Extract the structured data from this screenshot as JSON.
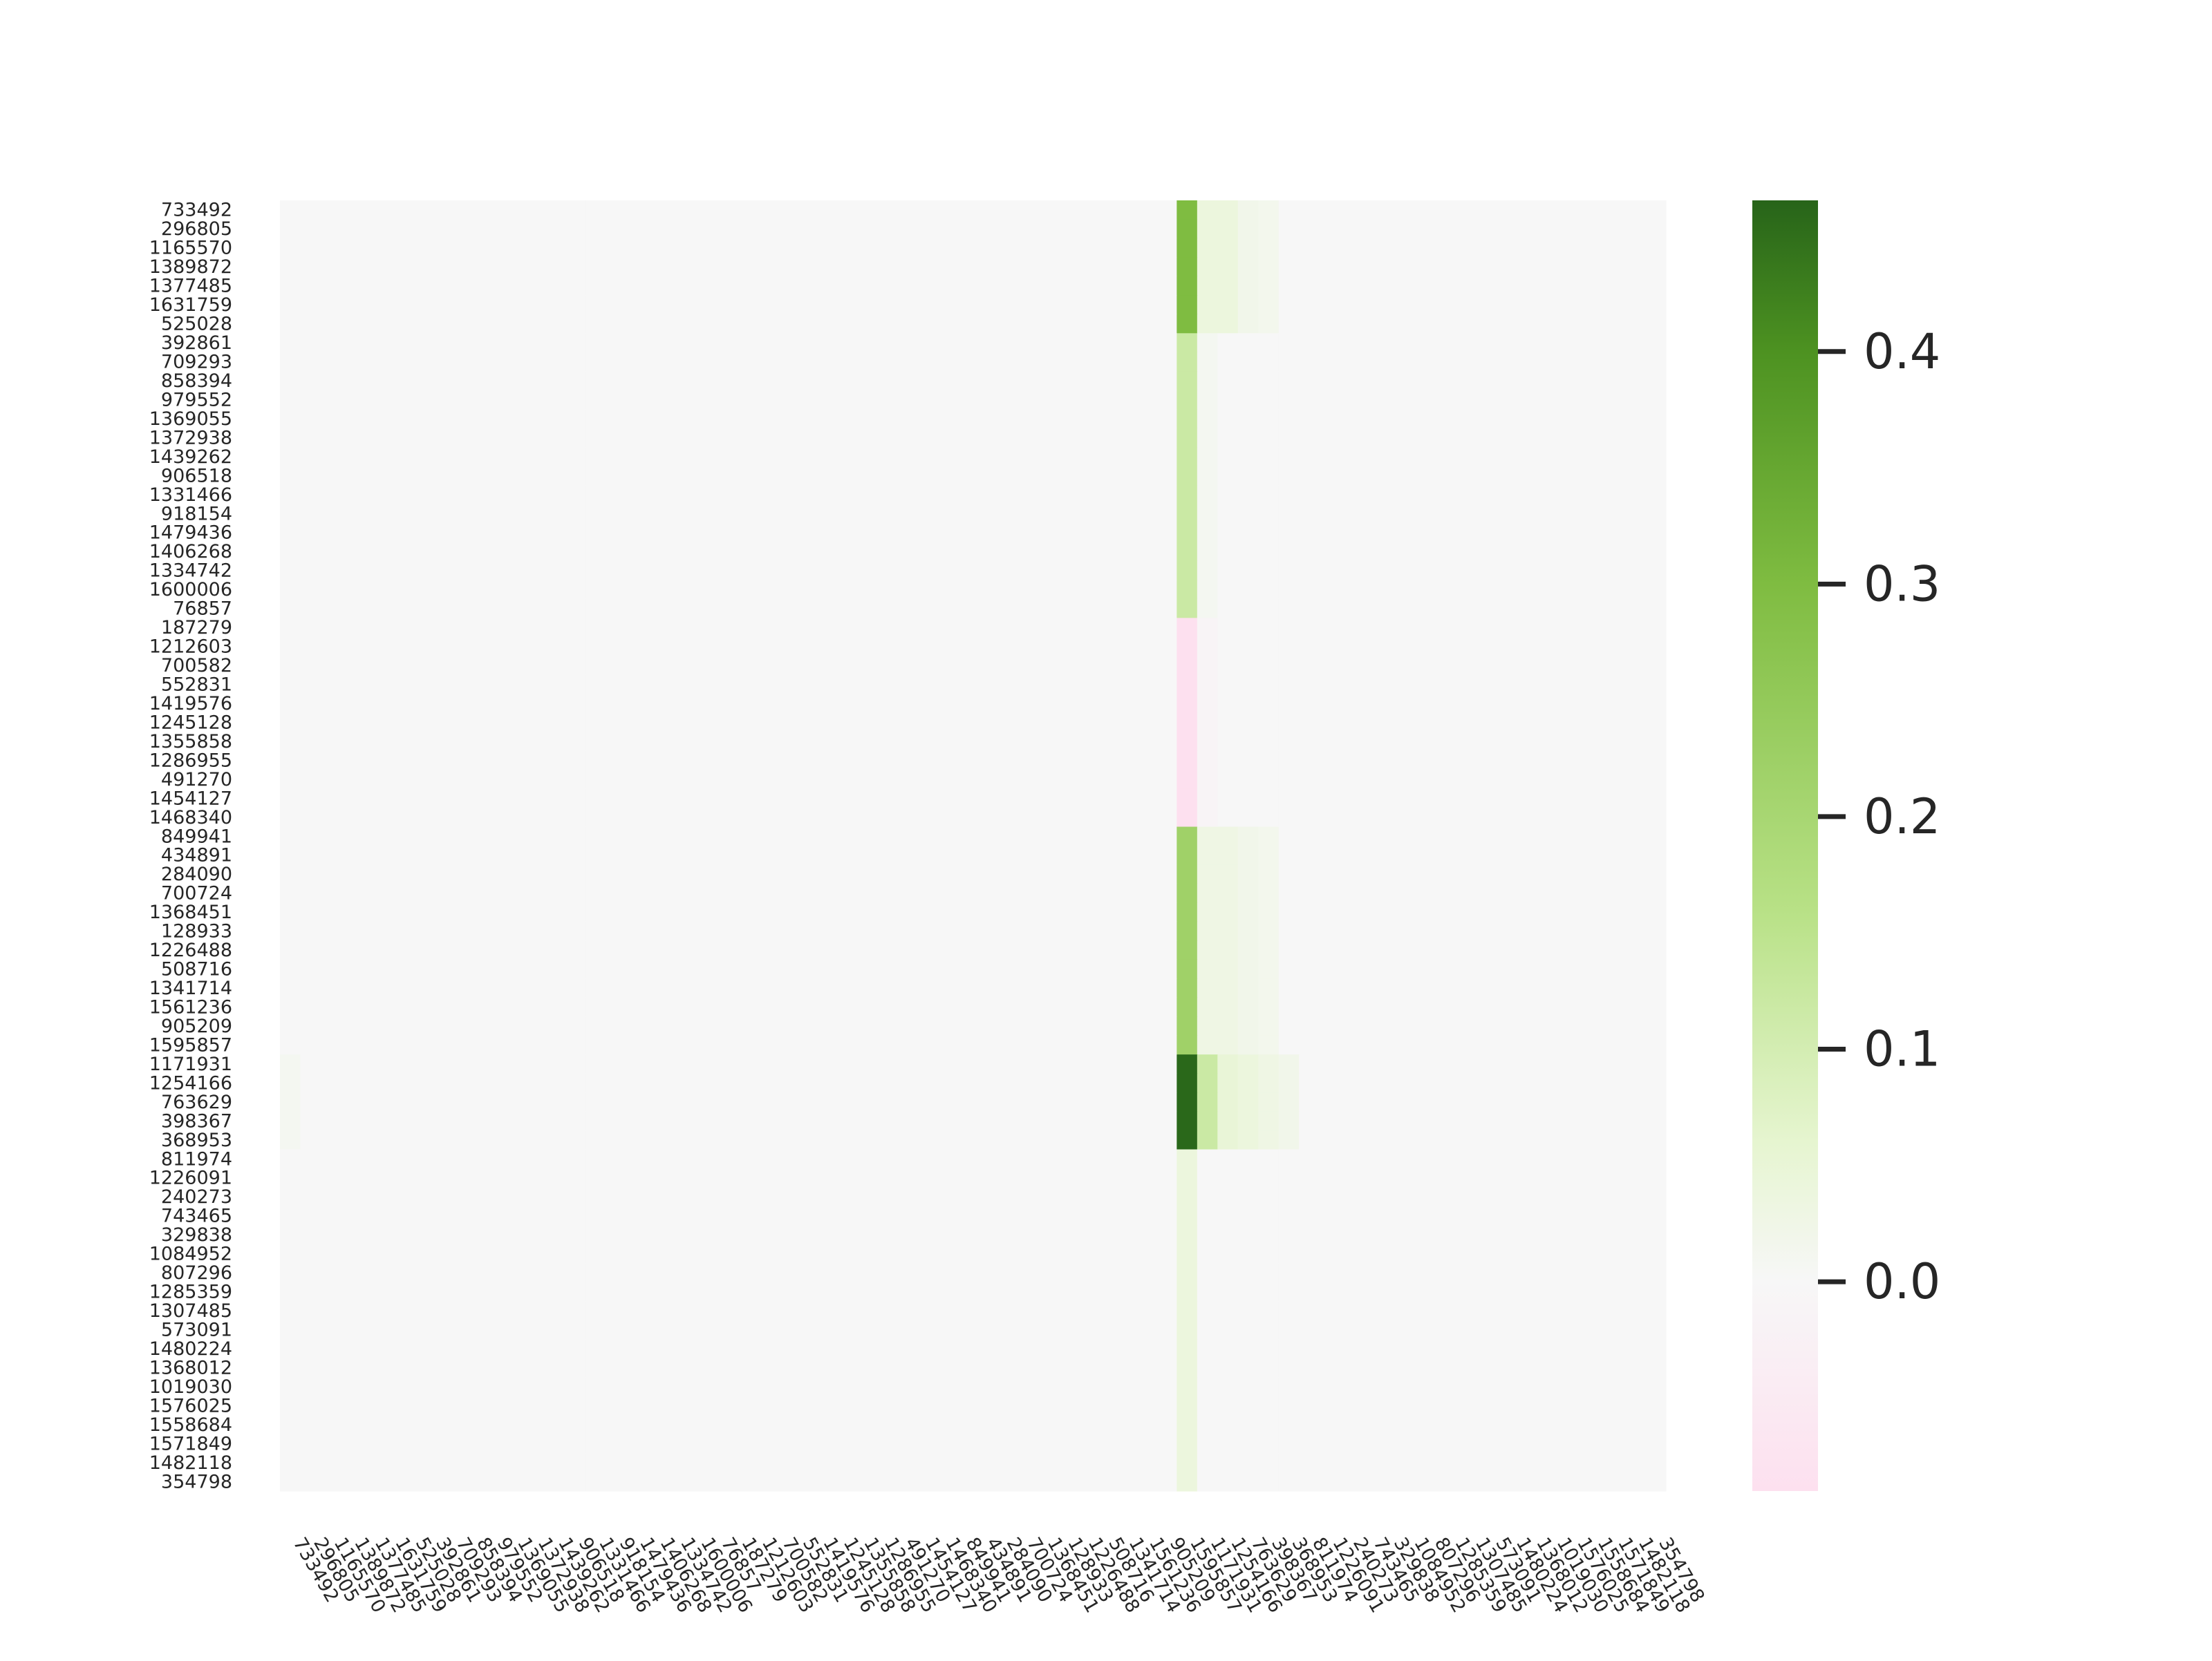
{
  "chart_data": {
    "type": "heatmap",
    "title": "",
    "xlabel": "",
    "ylabel": "",
    "row_labels": [
      "733492",
      "296805",
      "1165570",
      "1389872",
      "1377485",
      "1631759",
      "525028",
      "392861",
      "709293",
      "858394",
      "979552",
      "1369055",
      "1372938",
      "1439262",
      "906518",
      "1331466",
      "918154",
      "1479436",
      "1406268",
      "1334742",
      "1600006",
      "76857",
      "187279",
      "1212603",
      "700582",
      "552831",
      "1419576",
      "1245128",
      "1355858",
      "1286955",
      "491270",
      "1454127",
      "1468340",
      "849941",
      "434891",
      "284090",
      "700724",
      "1368451",
      "128933",
      "1226488",
      "508716",
      "1341714",
      "1561236",
      "905209",
      "1595857",
      "1171931",
      "1254166",
      "763629",
      "398367",
      "368953",
      "811974",
      "1226091",
      "240273",
      "743465",
      "329838",
      "1084952",
      "807296",
      "1285359",
      "1307485",
      "573091",
      "1480224",
      "1368012",
      "1019030",
      "1576025",
      "1558684",
      "1571849",
      "1482118",
      "354798"
    ],
    "col_labels": [
      "733492",
      "296805",
      "1165570",
      "1389872",
      "1377485",
      "1631759",
      "525028",
      "392861",
      "709293",
      "858394",
      "979552",
      "1369055",
      "1372938",
      "1439262",
      "906518",
      "1331466",
      "918154",
      "1479436",
      "1406268",
      "1334742",
      "1600006",
      "76857",
      "187279",
      "1212603",
      "700582",
      "552831",
      "1419576",
      "1245128",
      "1355858",
      "1286955",
      "491270",
      "1454127",
      "1468340",
      "849941",
      "434891",
      "284090",
      "700724",
      "1368451",
      "128933",
      "1226488",
      "508716",
      "1341714",
      "1561236",
      "905209",
      "1595857",
      "1171931",
      "1254166",
      "763629",
      "398367",
      "368953",
      "811974",
      "1226091",
      "240273",
      "743465",
      "329838",
      "1084952",
      "807296",
      "1285359",
      "1307485",
      "573091",
      "1480224",
      "1368012",
      "1019030",
      "1576025",
      "1558684",
      "1571849",
      "1482118",
      "354798"
    ],
    "groups": [
      {
        "rows": [
          0,
          6
        ],
        "values": {
          "44": 0.3,
          "45": 0.04,
          "46": 0.04,
          "47": 0.02,
          "48": 0.015
        }
      },
      {
        "rows": [
          7,
          21
        ],
        "values": {
          "44": 0.12,
          "45": 0.01
        }
      },
      {
        "rows": [
          22,
          32
        ],
        "values": {
          "44": -0.09,
          "45": -0.01
        }
      },
      {
        "rows": [
          33,
          44
        ],
        "values": {
          "44": 0.22,
          "45": 0.03,
          "46": 0.03,
          "47": 0.02,
          "48": 0.015
        }
      },
      {
        "rows": [
          45,
          49
        ],
        "values": {
          "0": 0.01,
          "44": 0.46,
          "45": 0.12,
          "46": 0.05,
          "47": 0.04,
          "48": 0.03,
          "49": 0.02
        }
      },
      {
        "rows": [
          50,
          67
        ],
        "values": {
          "44": 0.04
        }
      }
    ],
    "default_value": 0.0,
    "vmin": -0.09,
    "vmax": 0.465,
    "colorbar_ticks": [
      0.0,
      0.1,
      0.2,
      0.3,
      0.4
    ],
    "colorbar_tick_labels": [
      "0.0",
      "0.1",
      "0.2",
      "0.3",
      "0.4"
    ],
    "colormap": "PiYG",
    "colormap_stops": [
      {
        "v": -0.09,
        "color": "#fde0ef"
      },
      {
        "v": 0.0,
        "color": "#f7f7f7"
      },
      {
        "v": 0.06,
        "color": "#e6f5d0"
      },
      {
        "v": 0.16,
        "color": "#b8e186"
      },
      {
        "v": 0.3,
        "color": "#7fbc41"
      },
      {
        "v": 0.4,
        "color": "#4d9221"
      },
      {
        "v": 0.465,
        "color": "#276419"
      }
    ]
  }
}
